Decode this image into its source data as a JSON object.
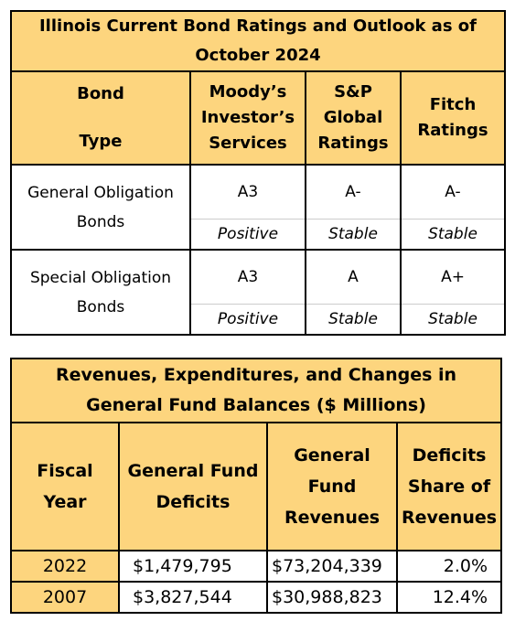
{
  "ratings_table": {
    "title": "Illinois Current Bond Ratings and Outlook as of October 2024",
    "headers": {
      "bond_type_line1": "Bond",
      "bond_type_line2": "Type",
      "moodys": "Moody’s Investor’s Services",
      "sp": "S&P Global Ratings",
      "fitch": "Fitch Ratings"
    },
    "rows": [
      {
        "label": "General Obligation Bonds",
        "moodys_rating": "A3",
        "sp_rating": "A-",
        "fitch_rating": "A-",
        "moodys_outlook": "Positive",
        "sp_outlook": "Stable",
        "fitch_outlook": "Stable"
      },
      {
        "label": "Special Obligation Bonds",
        "moodys_rating": "A3",
        "sp_rating": "A",
        "fitch_rating": "A+",
        "moodys_outlook": "Positive",
        "sp_outlook": "Stable",
        "fitch_outlook": "Stable"
      }
    ]
  },
  "fund_table": {
    "title": "Revenues, Expenditures, and Changes in General Fund Balances ($ Millions)",
    "headers": {
      "fiscal_year": "Fiscal Year",
      "deficits": "General Fund Deficits",
      "revenues": "General Fund Revenues",
      "share": "Deficits Share of Revenues"
    },
    "rows": [
      {
        "year": "2022",
        "deficit": "$1,479,795",
        "revenue": "$73,204,339",
        "share": "2.0%"
      },
      {
        "year": "2007",
        "deficit": "$3,827,544",
        "revenue": "$30,988,823",
        "share": "12.4%"
      }
    ]
  },
  "colors": {
    "header_gold": "#fdd57e",
    "border": "#000000"
  }
}
